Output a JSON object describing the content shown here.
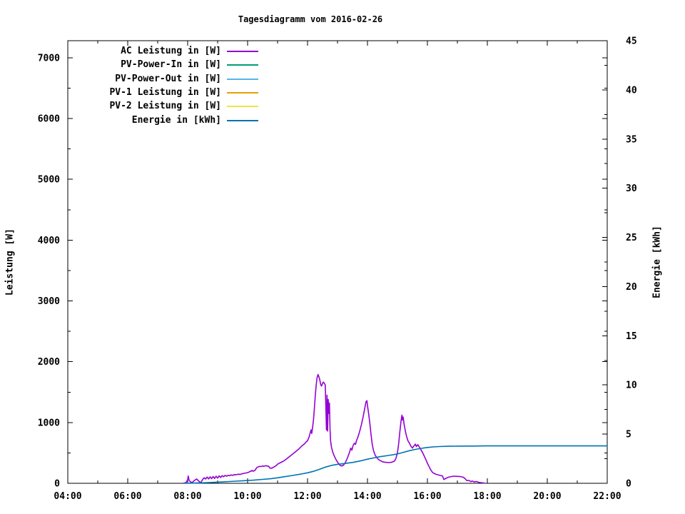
{
  "window": {
    "background": "#ffffff",
    "text_color": "#000000",
    "axis_color": "#000000"
  },
  "chart_data": {
    "type": "line",
    "title": "Tagesdiagramm vom 2016-02-26",
    "grid": false,
    "legend_position": "top-left-inside",
    "x_axis": {
      "range_hours": [
        4,
        22
      ],
      "tick_hours": [
        4,
        6,
        8,
        10,
        12,
        14,
        16,
        18,
        20,
        22
      ],
      "tick_labels": [
        "04:00",
        "06:00",
        "08:00",
        "10:00",
        "12:00",
        "14:00",
        "16:00",
        "18:00",
        "20:00",
        "22:00"
      ],
      "minor_tick_hours": [
        5,
        7,
        9,
        11,
        13,
        15,
        17,
        19,
        21
      ]
    },
    "y_left_axis": {
      "label": "Leistung [W]",
      "range": [
        0,
        7280
      ],
      "tick_values": [
        0,
        1000,
        2000,
        3000,
        4000,
        5000,
        6000,
        7000
      ],
      "tick_labels": [
        "0",
        "1000",
        "2000",
        "3000",
        "4000",
        "5000",
        "6000",
        "7000"
      ],
      "minor_tick_values": [
        500,
        1500,
        2500,
        3500,
        4500,
        5500,
        6500
      ]
    },
    "y_right_axis": {
      "label": "Energie [kWh]",
      "range": [
        0,
        45
      ],
      "tick_values": [
        0,
        5,
        10,
        15,
        20,
        25,
        30,
        35,
        40,
        45
      ],
      "tick_labels": [
        "0",
        "5",
        "10",
        "15",
        "20",
        "25",
        "30",
        "35",
        "40",
        "45"
      ],
      "minor_tick_values": [
        2.5,
        7.5,
        12.5,
        17.5,
        22.5,
        27.5,
        32.5,
        37.5,
        42.5
      ]
    },
    "series": [
      {
        "name": "AC Leistung in [W]",
        "color": "#9400d3",
        "axis": "left",
        "points": [
          [
            7.85,
            0
          ],
          [
            7.9,
            6
          ],
          [
            7.95,
            15
          ],
          [
            8.0,
            60
          ],
          [
            8.02,
            120
          ],
          [
            8.05,
            45
          ],
          [
            8.1,
            22
          ],
          [
            8.15,
            12
          ],
          [
            8.2,
            35
          ],
          [
            8.25,
            55
          ],
          [
            8.3,
            72
          ],
          [
            8.35,
            48
          ],
          [
            8.4,
            22
          ],
          [
            8.44,
            10
          ],
          [
            8.5,
            62
          ],
          [
            8.55,
            92
          ],
          [
            8.6,
            70
          ],
          [
            8.65,
            102
          ],
          [
            8.7,
            72
          ],
          [
            8.75,
            106
          ],
          [
            8.8,
            76
          ],
          [
            8.85,
            112
          ],
          [
            8.9,
            80
          ],
          [
            8.95,
            116
          ],
          [
            9.0,
            86
          ],
          [
            9.05,
            122
          ],
          [
            9.1,
            95
          ],
          [
            9.15,
            126
          ],
          [
            9.2,
            108
          ],
          [
            9.25,
            130
          ],
          [
            9.3,
            118
          ],
          [
            9.35,
            132
          ],
          [
            9.4,
            124
          ],
          [
            9.45,
            138
          ],
          [
            9.5,
            130
          ],
          [
            9.55,
            142
          ],
          [
            9.6,
            140
          ],
          [
            9.7,
            150
          ],
          [
            9.75,
            145
          ],
          [
            9.8,
            155
          ],
          [
            9.9,
            165
          ],
          [
            10.0,
            175
          ],
          [
            10.05,
            185
          ],
          [
            10.1,
            200
          ],
          [
            10.15,
            210
          ],
          [
            10.2,
            200
          ],
          [
            10.25,
            215
          ],
          [
            10.3,
            255
          ],
          [
            10.35,
            270
          ],
          [
            10.4,
            280
          ],
          [
            10.45,
            275
          ],
          [
            10.5,
            285
          ],
          [
            10.55,
            280
          ],
          [
            10.6,
            290
          ],
          [
            10.65,
            285
          ],
          [
            10.7,
            280
          ],
          [
            10.75,
            250
          ],
          [
            10.8,
            248
          ],
          [
            10.85,
            260
          ],
          [
            10.9,
            275
          ],
          [
            10.95,
            290
          ],
          [
            11.0,
            315
          ],
          [
            11.1,
            340
          ],
          [
            11.2,
            365
          ],
          [
            11.3,
            400
          ],
          [
            11.4,
            440
          ],
          [
            11.5,
            480
          ],
          [
            11.6,
            520
          ],
          [
            11.7,
            560
          ],
          [
            11.8,
            610
          ],
          [
            11.9,
            650
          ],
          [
            11.95,
            680
          ],
          [
            12.0,
            700
          ],
          [
            12.05,
            760
          ],
          [
            12.1,
            850
          ],
          [
            12.12,
            880
          ],
          [
            12.14,
            820
          ],
          [
            12.17,
            920
          ],
          [
            12.2,
            1050
          ],
          [
            12.23,
            1250
          ],
          [
            12.26,
            1450
          ],
          [
            12.29,
            1620
          ],
          [
            12.32,
            1740
          ],
          [
            12.35,
            1790
          ],
          [
            12.38,
            1750
          ],
          [
            12.41,
            1700
          ],
          [
            12.44,
            1620
          ],
          [
            12.47,
            1600
          ],
          [
            12.5,
            1645
          ],
          [
            12.53,
            1665
          ],
          [
            12.56,
            1645
          ],
          [
            12.59,
            1620
          ],
          [
            12.61,
            1300
          ],
          [
            12.63,
            880
          ],
          [
            12.65,
            1450
          ],
          [
            12.67,
            860
          ],
          [
            12.69,
            1380
          ],
          [
            12.71,
            1150
          ],
          [
            12.73,
            1320
          ],
          [
            12.75,
            900
          ],
          [
            12.77,
            700
          ],
          [
            12.8,
            590
          ],
          [
            12.85,
            500
          ],
          [
            12.9,
            440
          ],
          [
            12.95,
            390
          ],
          [
            13.0,
            350
          ],
          [
            13.05,
            315
          ],
          [
            13.1,
            290
          ],
          [
            13.15,
            285
          ],
          [
            13.2,
            300
          ],
          [
            13.25,
            330
          ],
          [
            13.3,
            380
          ],
          [
            13.35,
            440
          ],
          [
            13.4,
            510
          ],
          [
            13.44,
            580
          ],
          [
            13.48,
            545
          ],
          [
            13.52,
            620
          ],
          [
            13.56,
            660
          ],
          [
            13.6,
            640
          ],
          [
            13.64,
            710
          ],
          [
            13.68,
            760
          ],
          [
            13.72,
            820
          ],
          [
            13.76,
            890
          ],
          [
            13.8,
            970
          ],
          [
            13.84,
            1060
          ],
          [
            13.88,
            1160
          ],
          [
            13.92,
            1260
          ],
          [
            13.95,
            1340
          ],
          [
            13.98,
            1360
          ],
          [
            14.0,
            1280
          ],
          [
            14.04,
            1140
          ],
          [
            14.08,
            980
          ],
          [
            14.12,
            800
          ],
          [
            14.16,
            640
          ],
          [
            14.2,
            540
          ],
          [
            14.25,
            470
          ],
          [
            14.3,
            430
          ],
          [
            14.35,
            400
          ],
          [
            14.4,
            380
          ],
          [
            14.5,
            355
          ],
          [
            14.6,
            345
          ],
          [
            14.7,
            340
          ],
          [
            14.8,
            345
          ],
          [
            14.9,
            365
          ],
          [
            14.95,
            410
          ],
          [
            15.0,
            500
          ],
          [
            15.04,
            650
          ],
          [
            15.08,
            850
          ],
          [
            15.12,
            1020
          ],
          [
            15.15,
            1120
          ],
          [
            15.17,
            1040
          ],
          [
            15.19,
            1090
          ],
          [
            15.22,
            980
          ],
          [
            15.26,
            870
          ],
          [
            15.3,
            780
          ],
          [
            15.35,
            700
          ],
          [
            15.4,
            660
          ],
          [
            15.45,
            610
          ],
          [
            15.5,
            580
          ],
          [
            15.55,
            615
          ],
          [
            15.6,
            645
          ],
          [
            15.63,
            605
          ],
          [
            15.68,
            635
          ],
          [
            15.72,
            605
          ],
          [
            15.78,
            555
          ],
          [
            15.85,
            495
          ],
          [
            15.9,
            440
          ],
          [
            15.95,
            390
          ],
          [
            16.0,
            330
          ],
          [
            16.05,
            280
          ],
          [
            16.1,
            230
          ],
          [
            16.17,
            180
          ],
          [
            16.25,
            155
          ],
          [
            16.33,
            142
          ],
          [
            16.42,
            130
          ],
          [
            16.5,
            122
          ],
          [
            16.55,
            62
          ],
          [
            16.62,
            82
          ],
          [
            16.7,
            100
          ],
          [
            16.8,
            112
          ],
          [
            16.9,
            118
          ],
          [
            17.0,
            114
          ],
          [
            17.1,
            110
          ],
          [
            17.2,
            100
          ],
          [
            17.27,
            70
          ],
          [
            17.32,
            42
          ],
          [
            17.38,
            48
          ],
          [
            17.45,
            28
          ],
          [
            17.5,
            38
          ],
          [
            17.57,
            22
          ],
          [
            17.63,
            30
          ],
          [
            17.7,
            18
          ],
          [
            17.77,
            12
          ],
          [
            17.83,
            8
          ],
          [
            17.9,
            3
          ]
        ]
      },
      {
        "name": "PV-Power-In in [W]",
        "color": "#009e73",
        "axis": "left",
        "points": []
      },
      {
        "name": "PV-Power-Out in [W]",
        "color": "#56b4e9",
        "axis": "left",
        "points": []
      },
      {
        "name": "PV-1 Leistung in [W]",
        "color": "#e69f00",
        "axis": "left",
        "points": []
      },
      {
        "name": "PV-2 Leistung in [W]",
        "color": "#f0e442",
        "axis": "left",
        "points": []
      },
      {
        "name": "Energie in [kWh]",
        "color": "#0072b2",
        "axis": "right",
        "points": [
          [
            7.9,
            0
          ],
          [
            8.2,
            0.02
          ],
          [
            8.5,
            0.05
          ],
          [
            8.8,
            0.09
          ],
          [
            9.1,
            0.13
          ],
          [
            9.4,
            0.18
          ],
          [
            9.6,
            0.22
          ],
          [
            9.9,
            0.27
          ],
          [
            10.2,
            0.32
          ],
          [
            10.5,
            0.4
          ],
          [
            10.8,
            0.48
          ],
          [
            11.0,
            0.56
          ],
          [
            11.2,
            0.66
          ],
          [
            11.5,
            0.8
          ],
          [
            11.8,
            0.95
          ],
          [
            12.0,
            1.07
          ],
          [
            12.2,
            1.22
          ],
          [
            12.4,
            1.42
          ],
          [
            12.6,
            1.65
          ],
          [
            12.8,
            1.82
          ],
          [
            13.0,
            1.93
          ],
          [
            13.2,
            2.0
          ],
          [
            13.5,
            2.12
          ],
          [
            13.8,
            2.3
          ],
          [
            14.0,
            2.45
          ],
          [
            14.2,
            2.58
          ],
          [
            14.4,
            2.7
          ],
          [
            14.7,
            2.83
          ],
          [
            15.0,
            2.98
          ],
          [
            15.2,
            3.15
          ],
          [
            15.4,
            3.32
          ],
          [
            15.6,
            3.45
          ],
          [
            15.8,
            3.56
          ],
          [
            16.0,
            3.64
          ],
          [
            16.2,
            3.7
          ],
          [
            16.4,
            3.74
          ],
          [
            16.7,
            3.77
          ],
          [
            17.0,
            3.78
          ],
          [
            17.5,
            3.79
          ],
          [
            18.0,
            3.8
          ],
          [
            19.0,
            3.8
          ],
          [
            20.0,
            3.8
          ],
          [
            21.0,
            3.8
          ],
          [
            22.0,
            3.8
          ]
        ]
      }
    ]
  }
}
